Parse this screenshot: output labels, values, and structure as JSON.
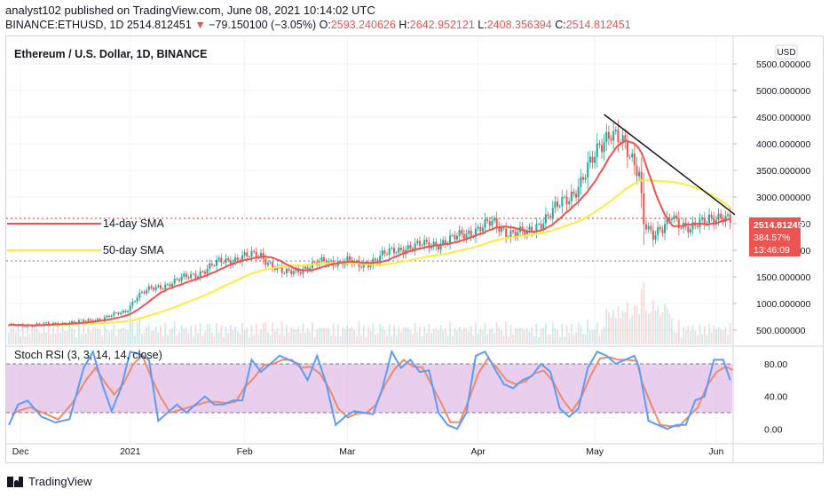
{
  "header": {
    "line1": "analyst102 published on TradingView.com, June 08, 2021 10:14:02 UTC",
    "symbol": "BINANCE:ETHUSD, 1D",
    "last": "2514.812451",
    "arrow": "▼",
    "change": "−79.150100 (−3.05%)",
    "o_label": "O:",
    "o": "2593.240626",
    "h_label": "H:",
    "h": "2642.952121",
    "l_label": "L:",
    "l": "2408.356394",
    "c_label": "C:",
    "c": "2514.812451"
  },
  "chart_title": "Ethereum / U.S. Dollar, 1D, BINANCE",
  "currency_button": "USD",
  "price_tag": {
    "price": "2514.812451",
    "percent": "384.57%",
    "countdown": "13:46:09"
  },
  "legend": {
    "sma14": "14-day SMA",
    "sma50": "50-day SMA"
  },
  "stoch_title": "Stoch RSI (3, 3, 14, 14, close)",
  "footer_brand": "TradingView",
  "colors": {
    "up": "#26a69a",
    "down": "#ef5350",
    "sma14": "#ef5350",
    "sma50": "#ffeb3b",
    "trendline": "#131722",
    "stochK": "#5b9cf6",
    "stochD": "#f08a6a",
    "band": "#e1bee7"
  },
  "chart_data": [
    {
      "type": "candlestick",
      "title": "Ethereum / U.S. Dollar, 1D, BINANCE",
      "x_labels": [
        "Dec",
        "2021",
        "Feb",
        "Mar",
        "Apr",
        "May",
        "Jun"
      ],
      "y_ticks": [
        500,
        1000,
        1500,
        2000,
        2500,
        3000,
        3500,
        4000,
        4500,
        5000,
        5500
      ],
      "y_tick_labels": [
        "500.000000",
        "1000.000000",
        "1500.000000",
        "2000.000000",
        "2500.000000",
        "3000.000000",
        "3500.000000",
        "4000.000000",
        "4500.000000",
        "5000.000000",
        "5500.000000"
      ],
      "ylim": [
        400,
        5750
      ],
      "last_close": 2514.812451,
      "ohlc_monthly_approx": [
        {
          "month": "Dec",
          "open": 600,
          "close": 735
        },
        {
          "month": "Jan",
          "open": 735,
          "close": 1310
        },
        {
          "month": "Feb",
          "open": 1310,
          "close": 1420
        },
        {
          "month": "Mar",
          "open": 1420,
          "close": 1920
        },
        {
          "month": "Apr",
          "open": 1920,
          "close": 2770
        },
        {
          "month": "May",
          "open": 2770,
          "close": 2710
        },
        {
          "month": "Jun",
          "open": 2710,
          "close": 2514
        }
      ],
      "price_path_approx": [
        [
          0,
          580
        ],
        [
          10,
          600
        ],
        [
          20,
          620
        ],
        [
          30,
          655
        ],
        [
          40,
          720
        ],
        [
          50,
          850
        ],
        [
          55,
          1150
        ],
        [
          60,
          1250
        ],
        [
          70,
          1400
        ],
        [
          80,
          1550
        ],
        [
          90,
          1770
        ],
        [
          100,
          1880
        ],
        [
          108,
          1900
        ],
        [
          118,
          1550
        ],
        [
          125,
          1650
        ],
        [
          135,
          1780
        ],
        [
          145,
          1800
        ],
        [
          150,
          1700
        ],
        [
          160,
          1900
        ],
        [
          170,
          2060
        ],
        [
          180,
          2100
        ],
        [
          190,
          2200
        ],
        [
          200,
          2400
        ],
        [
          207,
          2500
        ],
        [
          214,
          2350
        ],
        [
          222,
          2300
        ],
        [
          228,
          2550
        ],
        [
          235,
          2800
        ],
        [
          240,
          3000
        ],
        [
          245,
          3300
        ],
        [
          250,
          3650
        ],
        [
          255,
          4100
        ],
        [
          258,
          4300
        ],
        [
          262,
          4050
        ],
        [
          266,
          3700
        ],
        [
          270,
          3500
        ],
        [
          272,
          2600
        ],
        [
          276,
          2250
        ],
        [
          280,
          2350
        ],
        [
          284,
          2700
        ],
        [
          288,
          2500
        ],
        [
          292,
          2350
        ],
        [
          296,
          2500
        ],
        [
          300,
          2650
        ],
        [
          305,
          2600
        ],
        [
          309,
          2514
        ]
      ],
      "series": [
        {
          "name": "14-day SMA",
          "color": "#ef5350"
        },
        {
          "name": "50-day SMA",
          "color": "#ffeb3b"
        }
      ],
      "trendline": [
        [
          255,
          4550
        ],
        [
          311,
          2670
        ]
      ],
      "dotted_levels": [
        2600,
        1800
      ]
    },
    {
      "type": "line",
      "title": "Stoch RSI (3, 3, 14, 14, close)",
      "y_ticks": [
        0,
        40,
        80
      ],
      "y_tick_labels": [
        "0.00",
        "40.00",
        "80.00"
      ],
      "ylim": [
        -8,
        100
      ],
      "band": [
        20,
        80
      ],
      "k_points": [
        [
          0,
          5
        ],
        [
          4,
          30
        ],
        [
          8,
          35
        ],
        [
          14,
          15
        ],
        [
          20,
          8
        ],
        [
          26,
          12
        ],
        [
          32,
          75
        ],
        [
          36,
          95
        ],
        [
          40,
          55
        ],
        [
          44,
          22
        ],
        [
          48,
          50
        ],
        [
          52,
          95
        ],
        [
          56,
          92
        ],
        [
          60,
          85
        ],
        [
          64,
          10
        ],
        [
          68,
          20
        ],
        [
          72,
          30
        ],
        [
          76,
          20
        ],
        [
          80,
          30
        ],
        [
          84,
          40
        ],
        [
          88,
          30
        ],
        [
          92,
          30
        ],
        [
          96,
          35
        ],
        [
          100,
          35
        ],
        [
          104,
          85
        ],
        [
          108,
          70
        ],
        [
          112,
          80
        ],
        [
          116,
          90
        ],
        [
          120,
          85
        ],
        [
          124,
          80
        ],
        [
          128,
          60
        ],
        [
          132,
          90
        ],
        [
          136,
          55
        ],
        [
          140,
          5
        ],
        [
          144,
          15
        ],
        [
          148,
          22
        ],
        [
          152,
          20
        ],
        [
          156,
          18
        ],
        [
          160,
          50
        ],
        [
          164,
          95
        ],
        [
          168,
          75
        ],
        [
          172,
          85
        ],
        [
          176,
          70
        ],
        [
          180,
          72
        ],
        [
          184,
          20
        ],
        [
          188,
          5
        ],
        [
          192,
          0
        ],
        [
          196,
          20
        ],
        [
          200,
          90
        ],
        [
          204,
          95
        ],
        [
          208,
          75
        ],
        [
          212,
          55
        ],
        [
          216,
          50
        ],
        [
          220,
          60
        ],
        [
          224,
          65
        ],
        [
          228,
          80
        ],
        [
          232,
          70
        ],
        [
          236,
          25
        ],
        [
          240,
          15
        ],
        [
          244,
          25
        ],
        [
          248,
          75
        ],
        [
          252,
          95
        ],
        [
          256,
          90
        ],
        [
          260,
          80
        ],
        [
          264,
          85
        ],
        [
          268,
          90
        ],
        [
          270,
          75
        ],
        [
          274,
          10
        ],
        [
          278,
          5
        ],
        [
          282,
          0
        ],
        [
          286,
          5
        ],
        [
          290,
          5
        ],
        [
          294,
          35
        ],
        [
          298,
          40
        ],
        [
          302,
          85
        ],
        [
          306,
          85
        ],
        [
          309,
          60
        ]
      ]
    }
  ]
}
